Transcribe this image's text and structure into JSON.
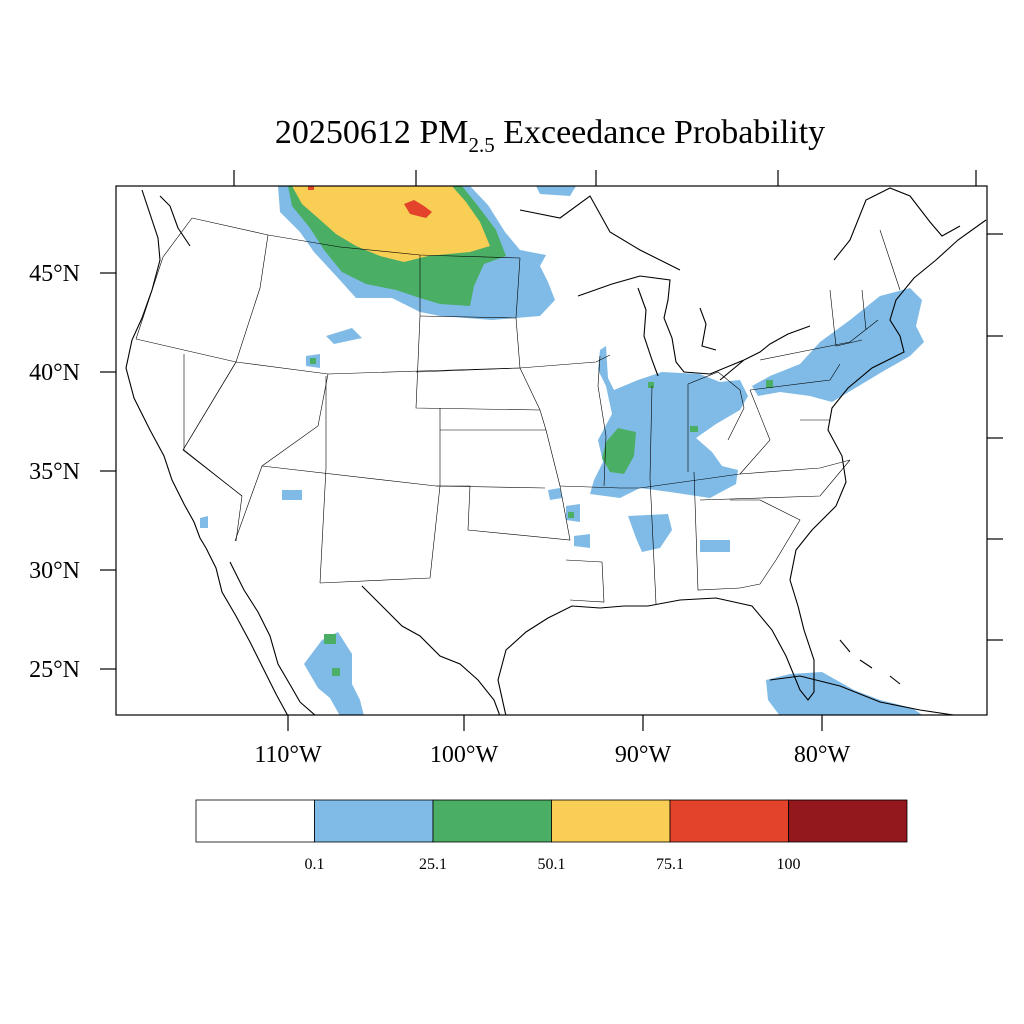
{
  "title": {
    "prefix": "20250612 PM",
    "subscript": "2.5",
    "suffix": " Exceedance Probability"
  },
  "map": {
    "lat_ticks": [
      "45°N",
      "40°N",
      "35°N",
      "30°N",
      "25°N"
    ],
    "lon_ticks": [
      "110°W",
      "100°W",
      "90°W",
      "80°W"
    ]
  },
  "colorbar": {
    "colors": [
      "#ffffff",
      "#7fbbe6",
      "#4bae65",
      "#f9ce55",
      "#e3432a",
      "#92181d"
    ],
    "labels": [
      "0.1",
      "25.1",
      "50.1",
      "75.1",
      "100"
    ]
  },
  "colors": {
    "low": "#7fbbe6",
    "moderate": "#4bae65",
    "high": "#f9ce55",
    "very_high": "#e3432a",
    "extreme": "#92181d"
  }
}
